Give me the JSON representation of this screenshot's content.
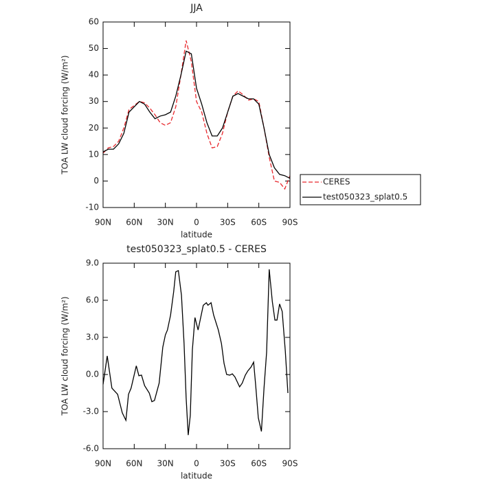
{
  "chart_data": [
    {
      "type": "line",
      "title": "JJA",
      "xlabel": "latitude",
      "ylabel": "TOA LW cloud forcing (W/m²)",
      "x": [
        90,
        85,
        80,
        75,
        70,
        65,
        60,
        55,
        50,
        45,
        40,
        35,
        30,
        25,
        20,
        15,
        10,
        5,
        0,
        -5,
        -10,
        -15,
        -20,
        -25,
        -30,
        -35,
        -40,
        -45,
        -50,
        -55,
        -60,
        -65,
        -70,
        -75,
        -80,
        -85,
        -90
      ],
      "series": [
        {
          "name": "CERES",
          "color": "#e8262b",
          "linestyle": "dashed",
          "values": [
            10.5,
            12.5,
            13,
            15,
            20,
            27,
            28.5,
            30,
            29.5,
            27.5,
            25,
            22,
            21,
            22,
            28,
            40,
            53,
            45,
            30,
            26,
            18,
            12.5,
            13,
            18,
            26,
            32,
            34,
            32.5,
            30.5,
            31,
            30,
            20,
            9,
            0,
            -0.5,
            -3,
            2
          ]
        },
        {
          "name": "test050323_splat0.5",
          "color": "#000000",
          "linestyle": "solid",
          "values": [
            11,
            12,
            12,
            14,
            18,
            26,
            28,
            30,
            29,
            26,
            23.5,
            24.5,
            25,
            26,
            32,
            40,
            49,
            48,
            35,
            29,
            22,
            17,
            17,
            20,
            26,
            32,
            33,
            32,
            31,
            31,
            29,
            20,
            10,
            5,
            2.5,
            2,
            1
          ]
        }
      ],
      "xlim": [
        90,
        -90
      ],
      "xticks": [
        {
          "value": 90,
          "label": "90N"
        },
        {
          "value": 60,
          "label": "60N"
        },
        {
          "value": 30,
          "label": "30N"
        },
        0,
        {
          "value": -30,
          "label": "30S"
        },
        {
          "value": -60,
          "label": "60S"
        },
        {
          "value": -90,
          "label": "90S"
        }
      ],
      "ylim": [
        -10,
        60
      ],
      "yticks": [
        -10,
        0,
        10,
        20,
        30,
        40,
        50,
        60
      ],
      "legend": "right"
    },
    {
      "type": "line",
      "title": "test050323_splat0.5 - CERES",
      "xlabel": "latitude",
      "ylabel": "TOA LW cloud forcing (W/m²)",
      "x": [
        90,
        86,
        81.5,
        76,
        71.5,
        68,
        65.5,
        63,
        58,
        55.5,
        53,
        50,
        45.5,
        43,
        40.5,
        36,
        32.5,
        30,
        28,
        25,
        22,
        20,
        17.5,
        14.5,
        12,
        10,
        8,
        6,
        4,
        1.5,
        -1.5,
        -4,
        -6.5,
        -9.5,
        -11,
        -14,
        -16.5,
        -21,
        -24,
        -26.5,
        -29,
        -32,
        -34.5,
        -37,
        -41.5,
        -44,
        -47,
        -49.5,
        -52.5,
        -55,
        -57,
        -59.5,
        -62.5,
        -65,
        -67.5,
        -70,
        -73,
        -75.5,
        -77.5,
        -80,
        -82.5,
        -85.5,
        -88
      ],
      "series": [
        {
          "name": "test050323_splat0.5 - CERES",
          "color": "#000000",
          "linestyle": "solid",
          "values": [
            -0.8,
            1.5,
            -1.1,
            -1.6,
            -3.1,
            -3.7,
            -1.6,
            -1.1,
            0.7,
            -0.1,
            -0.05,
            -0.9,
            -1.5,
            -2.2,
            -2.1,
            -0.7,
            2.2,
            3.2,
            3.6,
            4.8,
            6.7,
            8.3,
            8.4,
            6.4,
            2.5,
            -1.9,
            -4.9,
            -3.3,
            2,
            4.6,
            3.6,
            4.6,
            5.6,
            5.8,
            5.6,
            5.8,
            4.8,
            3.6,
            2.5,
            0.9,
            0,
            -0.05,
            0.05,
            -0.2,
            -1,
            -0.7,
            -0.05,
            0.3,
            0.6,
            1,
            -0.9,
            -3.5,
            -4.6,
            -1.1,
            1.8,
            8.5,
            5.9,
            4.4,
            4.4,
            5.7,
            5.1,
            1.9,
            -1.5
          ]
        }
      ],
      "xlim": [
        90,
        -90
      ],
      "xticks": [
        {
          "value": 90,
          "label": "90N"
        },
        {
          "value": 60,
          "label": "60N"
        },
        {
          "value": 30,
          "label": "30N"
        },
        0,
        {
          "value": -30,
          "label": "30S"
        },
        {
          "value": -60,
          "label": "60S"
        },
        {
          "value": -90,
          "label": "90S"
        }
      ],
      "ylim": [
        -6,
        9
      ],
      "yticks": [
        {
          "value": -6,
          "label": "-6.0"
        },
        {
          "value": -3,
          "label": "-3.0"
        },
        {
          "value": 0,
          "label": "0.0"
        },
        {
          "value": 3,
          "label": "3.0"
        },
        {
          "value": 6,
          "label": "6.0"
        },
        {
          "value": 9,
          "label": "9.0"
        }
      ]
    }
  ]
}
